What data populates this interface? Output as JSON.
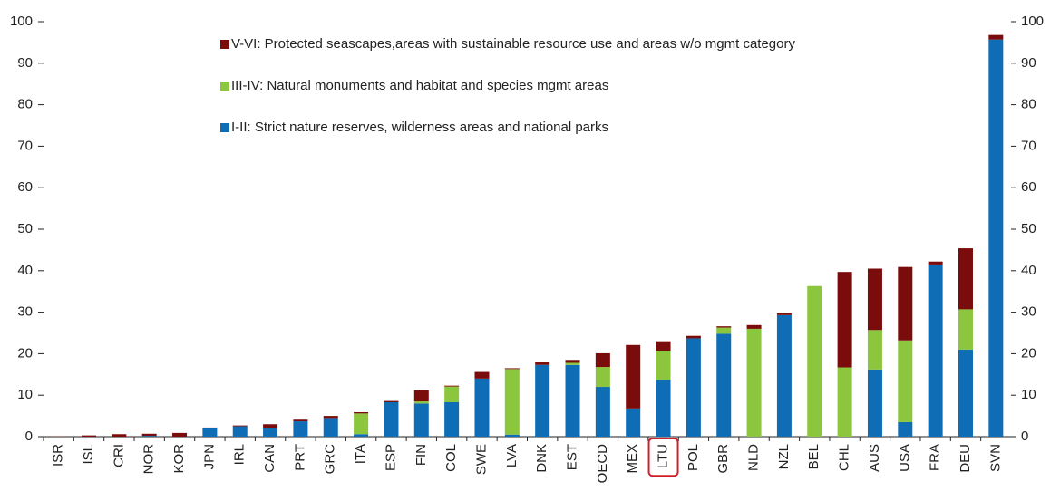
{
  "chart_data": {
    "type": "stacked_bar",
    "categories": [
      "ISR",
      "ISL",
      "CRI",
      "NOR",
      "KOR",
      "JPN",
      "IRL",
      "CAN",
      "PRT",
      "GRC",
      "ITA",
      "ESP",
      "FIN",
      "COL",
      "SWE",
      "LVA",
      "DNK",
      "EST",
      "OECD",
      "MEX",
      "LTU",
      "POL",
      "GBR",
      "NLD",
      "NZL",
      "BEL",
      "CHL",
      "AUS",
      "USA",
      "FRA",
      "DEU",
      "SVN"
    ],
    "series": [
      {
        "name": "I-II: Strict nature reserves, wilderness areas and national parks",
        "color": "#0f6db5",
        "values": [
          0,
          0,
          0,
          0.2,
          0,
          2.0,
          2.5,
          2.0,
          3.7,
          4.5,
          0.6,
          8.3,
          8.0,
          8.3,
          14.0,
          0.5,
          17.3,
          17.3,
          12.0,
          6.8,
          13.7,
          23.7,
          24.8,
          0,
          29.3,
          0,
          0,
          16.2,
          3.5,
          41.5,
          21.0,
          95.7
        ]
      },
      {
        "name": "III-IV: Natural monuments and habitat and species mgmt areas",
        "color": "#8cc63f",
        "values": [
          0,
          0,
          0,
          0,
          0,
          0,
          0,
          0,
          0,
          0,
          5.0,
          0,
          0.5,
          3.8,
          0,
          15.8,
          0,
          0.5,
          4.8,
          0,
          7.0,
          0,
          1.5,
          26.0,
          0,
          36.3,
          16.7,
          9.5,
          19.7,
          0,
          9.7,
          0
        ]
      },
      {
        "name": "V-VI: Protected seascapes,areas with sustainable resource use and areas w/o mgmt category",
        "color": "#7b0c0c",
        "values": [
          0.1,
          0.3,
          0.6,
          0.5,
          0.9,
          0.2,
          0.2,
          1.0,
          0.4,
          0.5,
          0.3,
          0.3,
          2.7,
          0.2,
          1.6,
          0.2,
          0.6,
          0.7,
          3.3,
          15.3,
          2.3,
          0.6,
          0.3,
          0.9,
          0.5,
          0,
          23.0,
          14.8,
          17.7,
          0.7,
          14.7,
          1.1
        ]
      }
    ],
    "ylim": [
      0,
      100
    ],
    "yticks": [
      0,
      10,
      20,
      30,
      40,
      50,
      60,
      70,
      80,
      90,
      100
    ],
    "y2lim": [
      0,
      100
    ],
    "y2ticks": [
      0,
      10,
      20,
      30,
      40,
      50,
      60,
      70,
      80,
      90,
      100
    ],
    "highlight": "LTU"
  }
}
